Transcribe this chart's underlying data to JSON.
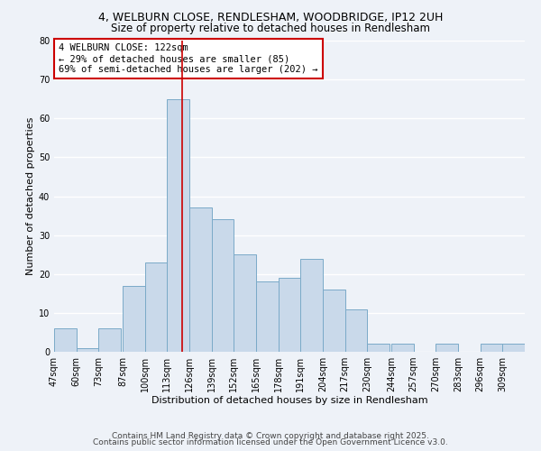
{
  "title_line1": "4, WELBURN CLOSE, RENDLESHAM, WOODBRIDGE, IP12 2UH",
  "title_line2": "Size of property relative to detached houses in Rendlesham",
  "xlabel": "Distribution of detached houses by size in Rendlesham",
  "ylabel": "Number of detached properties",
  "bins": [
    47,
    60,
    73,
    87,
    100,
    113,
    126,
    139,
    152,
    165,
    178,
    191,
    204,
    217,
    230,
    244,
    257,
    270,
    283,
    296,
    309
  ],
  "counts": [
    6,
    1,
    6,
    17,
    23,
    65,
    37,
    34,
    25,
    18,
    19,
    24,
    16,
    11,
    2,
    2,
    0,
    2,
    0,
    2,
    2
  ],
  "bar_color": "#c9d9ea",
  "bar_edge_color": "#7aaac8",
  "red_line_x": 122,
  "ylim": [
    0,
    80
  ],
  "yticks": [
    0,
    10,
    20,
    30,
    40,
    50,
    60,
    70,
    80
  ],
  "annotation_title": "4 WELBURN CLOSE: 122sqm",
  "annotation_line1": "← 29% of detached houses are smaller (85)",
  "annotation_line2": "69% of semi-detached houses are larger (202) →",
  "annotation_box_color": "#ffffff",
  "annotation_box_edge": "#cc0000",
  "footer_line1": "Contains HM Land Registry data © Crown copyright and database right 2025.",
  "footer_line2": "Contains public sector information licensed under the Open Government Licence v3.0.",
  "background_color": "#eef2f8",
  "grid_color": "#ffffff",
  "title_fontsize": 9,
  "subtitle_fontsize": 8.5,
  "axis_label_fontsize": 8,
  "tick_fontsize": 7,
  "annotation_fontsize": 7.5,
  "footer_fontsize": 6.5
}
